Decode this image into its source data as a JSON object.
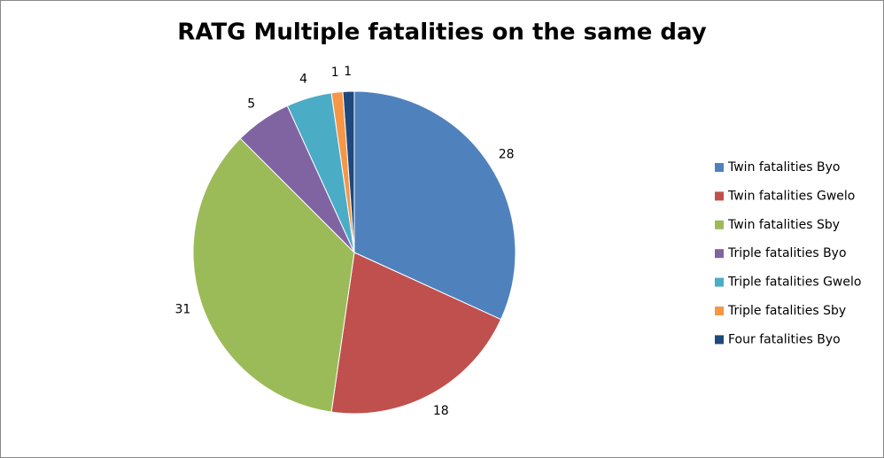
{
  "chart_data": {
    "type": "pie",
    "title": "RATG Multiple fatalities on the same day",
    "categories": [
      "Twin fatalities Byo",
      "Twin fatalities Gwelo",
      "Twin fatalities Sby",
      "Triple fatalities Byo",
      "Triple fatalities Gwelo",
      "Triple fatalities Sby",
      "Four fatalities Byo"
    ],
    "values": [
      28,
      18,
      31,
      5,
      4,
      1,
      1
    ],
    "colors": [
      "#4f81bd",
      "#c0504d",
      "#9bbb59",
      "#8064a2",
      "#4bacc6",
      "#f79646",
      "#1f497d"
    ],
    "legend": "right"
  }
}
